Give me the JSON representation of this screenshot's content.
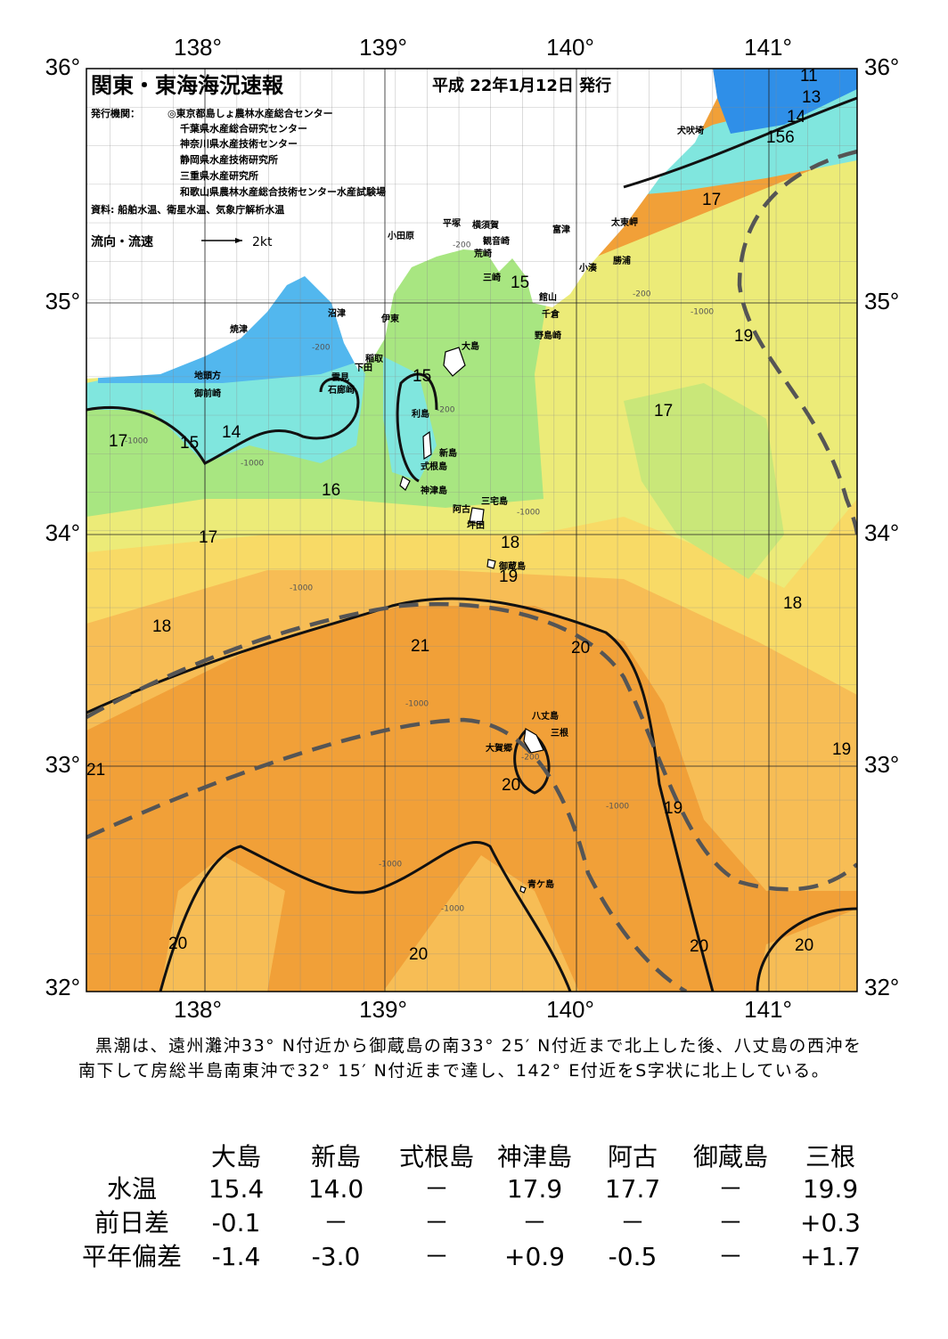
{
  "header": {
    "title": "関東・東海海況速報",
    "date": "平成 22年1月12日 発行",
    "issuer_label": "発行機関：",
    "issuers": [
      "◎東京都島しょ農林水産総合センター",
      "千葉県水産総合研究センター",
      "神奈川県水産技術センター",
      "静岡県水産技術研究所",
      "三重県水産研究所",
      "和歌山県農林水産総合技術センター水産試験場"
    ],
    "source": "資料: 船舶水温、衛星水温、気象庁解析水温",
    "legend_label": "流向・流速",
    "legend_scale": "2kt"
  },
  "map": {
    "lon_labels": [
      "138°",
      "139°",
      "140°",
      "141°"
    ],
    "lat_labels": [
      "36°",
      "35°",
      "34°",
      "33°",
      "32°"
    ],
    "places": [
      "犬吠埼",
      "太東岬",
      "勝浦",
      "小湊",
      "富津",
      "横須賀",
      "観音崎",
      "荒崎",
      "三崎",
      "館山",
      "千倉",
      "野島崎",
      "平塚",
      "小田原",
      "沼津",
      "伊東",
      "焼津",
      "稲取",
      "下田",
      "雲見",
      "石廊崎",
      "大島",
      "地頭方",
      "御前崎",
      "利島",
      "新島",
      "式根島",
      "神津島",
      "三宅島",
      "阿古",
      "坪田",
      "御蔵島",
      "八丈島",
      "三根",
      "大賀郷",
      "青ケ島"
    ],
    "contour_labels": [
      "11",
      "13",
      "14",
      "156",
      "17",
      "15",
      "19",
      "15",
      "17",
      "17",
      "15",
      "14",
      "16",
      "17",
      "18",
      "19",
      "18",
      "18",
      "21",
      "20",
      "19",
      "21",
      "20",
      "19",
      "20",
      "20",
      "20",
      "20"
    ],
    "depth_labels": [
      "-200",
      "-200",
      "-1000",
      "-200",
      "-1000",
      "-1000",
      "-200",
      "-1000",
      "-1000",
      "-1000",
      "-200",
      "-1000",
      "-1000",
      "-1000"
    ]
  },
  "summary": "黒潮は、遠州灘沖33° N付近から御蔵島の南33° 25′ N付近まで北上した後、八丈島の西沖を南下して房総半島南東沖で32° 15′ N付近まで達し、142° E付近をS字状に北上している。",
  "table": {
    "columns": [
      "大島",
      "新島",
      "式根島",
      "神津島",
      "阿古",
      "御蔵島",
      "三根"
    ],
    "rows": [
      {
        "label": "水温",
        "cells": [
          "15.4",
          "14.0",
          "－",
          "17.9",
          "17.7",
          "－",
          "19.9"
        ]
      },
      {
        "label": "前日差",
        "cells": [
          "-0.1",
          "－",
          "－",
          "－",
          "－",
          "－",
          "+0.3"
        ]
      },
      {
        "label": "平年偏差",
        "cells": [
          "-1.4",
          "-3.0",
          "－",
          "+0.9",
          "-0.5",
          "－",
          "+1.7"
        ]
      }
    ]
  }
}
